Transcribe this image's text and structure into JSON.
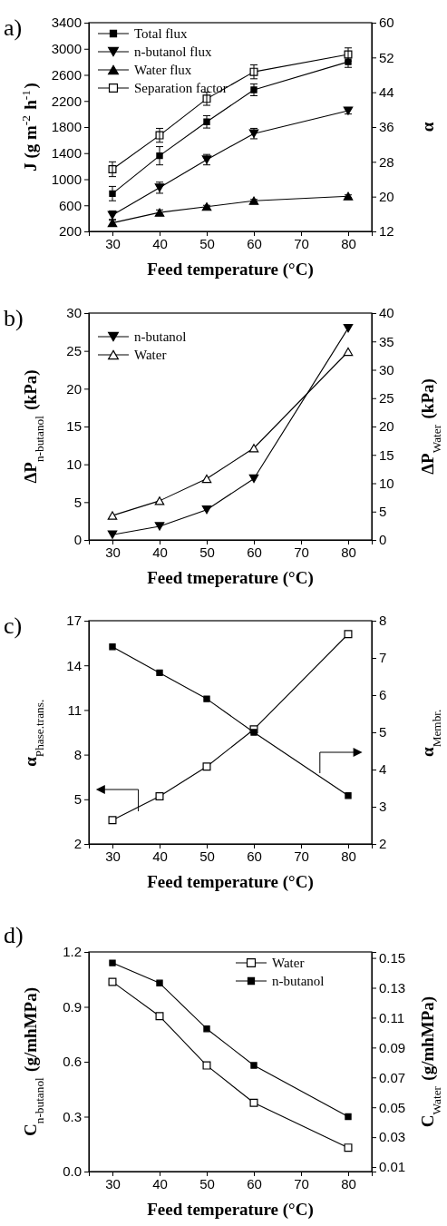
{
  "chart_data": [
    {
      "type": "line",
      "title": "a)",
      "xlabel": "Feed temperature (°C)",
      "ylabel": "J (g m$^{-2}$ h$^{-1}$)",
      "y2label": "α",
      "x": [
        30,
        40,
        50,
        60,
        80
      ],
      "xlim": [
        25,
        85
      ],
      "xticks": [
        30,
        40,
        50,
        60,
        70,
        80
      ],
      "ylim": [
        200,
        3400
      ],
      "yticks": [
        200,
        600,
        1000,
        1400,
        1800,
        2200,
        2600,
        3000,
        3400
      ],
      "y2lim": [
        12,
        60
      ],
      "y2ticks": [
        12,
        20,
        28,
        36,
        44,
        52,
        60
      ],
      "legend": "top left",
      "line_style": "solid",
      "series": [
        {
          "name": "Total flux",
          "color": "#000000",
          "marker": "square",
          "values": [
            780,
            1360,
            1880,
            2370,
            2800
          ],
          "errors": [
            110,
            140,
            95,
            90,
            85
          ]
        },
        {
          "name": "n-butanol flux",
          "color": "#000000",
          "marker": "triangle-down",
          "values": [
            450,
            870,
            1300,
            1700,
            2050
          ],
          "errors": [
            65,
            85,
            80,
            80,
            50
          ]
        },
        {
          "name": "Water flux",
          "color": "#000000",
          "marker": "triangle",
          "values": [
            330,
            490,
            580,
            670,
            740
          ],
          "errors": [
            40,
            40,
            20,
            20,
            20
          ]
        },
        {
          "name": "Separation factor",
          "color": "#000000",
          "marker": "square-open",
          "axis": "y2",
          "values": [
            26.3,
            34.1,
            42.5,
            48.7,
            52.7
          ],
          "errors": [
            1.7,
            1.6,
            1.5,
            1.6,
            1.5
          ]
        }
      ]
    },
    {
      "type": "line",
      "title": "b)",
      "xlabel": "Feed tmeperature (°C)",
      "ylabel": "ΔP$_{n-butanol}$ (kPa)",
      "y2label": "ΔP$_{Water}$ (kPa)",
      "x": [
        30,
        40,
        50,
        60,
        80
      ],
      "xlim": [
        25,
        85
      ],
      "xticks": [
        30,
        40,
        50,
        60,
        70,
        80
      ],
      "ylim": [
        0,
        30
      ],
      "yticks": [
        0,
        5,
        10,
        15,
        20,
        25,
        30
      ],
      "y2lim": [
        0,
        40
      ],
      "y2ticks": [
        0,
        5,
        10,
        15,
        20,
        25,
        30,
        35,
        40
      ],
      "legend": "top left",
      "line_style": "solid",
      "series": [
        {
          "name": "n-butanol",
          "color": "#000000",
          "marker": "triangle-down",
          "values": [
            0.7,
            1.8,
            4.0,
            8.1,
            28
          ]
        },
        {
          "name": "Water",
          "color": "#000000",
          "marker": "triangle-open",
          "axis": "y2",
          "values": [
            4.3,
            6.9,
            10.8,
            16.2,
            33.2
          ]
        }
      ]
    },
    {
      "type": "line",
      "title": "c)",
      "xlabel": "Feed temperature (°C)",
      "ylabel": "α$_{Phase.trans.}$",
      "y2label": "α$_{Membr.}$",
      "x": [
        30,
        40,
        50,
        60,
        80
      ],
      "xlim": [
        25,
        85
      ],
      "xticks": [
        30,
        40,
        50,
        60,
        70,
        80
      ],
      "ylim": [
        2,
        17
      ],
      "yticks": [
        2,
        5,
        8,
        11,
        14,
        17
      ],
      "y2lim": [
        2,
        8
      ],
      "y2ticks": [
        2,
        3,
        4,
        5,
        6,
        7,
        8
      ],
      "line_style": "solid",
      "series": [
        {
          "color": "#000000",
          "marker": "square-open",
          "values": [
            3.6,
            5.2,
            7.2,
            9.7,
            16.1
          ]
        },
        {
          "color": "#000000",
          "marker": "square",
          "axis": "y2",
          "values": [
            7.3,
            6.6,
            5.9,
            5.0,
            3.3
          ]
        }
      ]
    },
    {
      "type": "line",
      "title": "d)",
      "xlabel": "Feed temperature (°C)",
      "ylabel": "C$_{n-butanol}$ (g/mhMPa)",
      "y2label": "C$_{Water}$ (g/mhMPa)",
      "x": [
        30,
        40,
        50,
        60,
        80
      ],
      "xlim": [
        25,
        85
      ],
      "xticks": [
        30,
        40,
        50,
        60,
        70,
        80
      ],
      "ylim": [
        0,
        1.2
      ],
      "yticks": [
        {
          "value": 0,
          "label": "0.0"
        },
        0.3,
        0.6,
        0.9,
        1.2
      ],
      "y2lim": [
        0.007,
        0.154
      ],
      "y2ticks": [
        0.01,
        0.03,
        0.05,
        0.07,
        0.09,
        0.11,
        0.13,
        0.15
      ],
      "legend": "top right",
      "line_style": "solid",
      "series": [
        {
          "name": "Water",
          "color": "#000000",
          "marker": "square-open",
          "axis": "y2",
          "values": [
            0.134,
            0.111,
            0.078,
            0.053,
            0.023
          ]
        },
        {
          "name": "n-butanol",
          "color": "#000000",
          "marker": "square",
          "values": [
            1.14,
            1.03,
            0.78,
            0.58,
            0.3
          ]
        }
      ]
    }
  ]
}
